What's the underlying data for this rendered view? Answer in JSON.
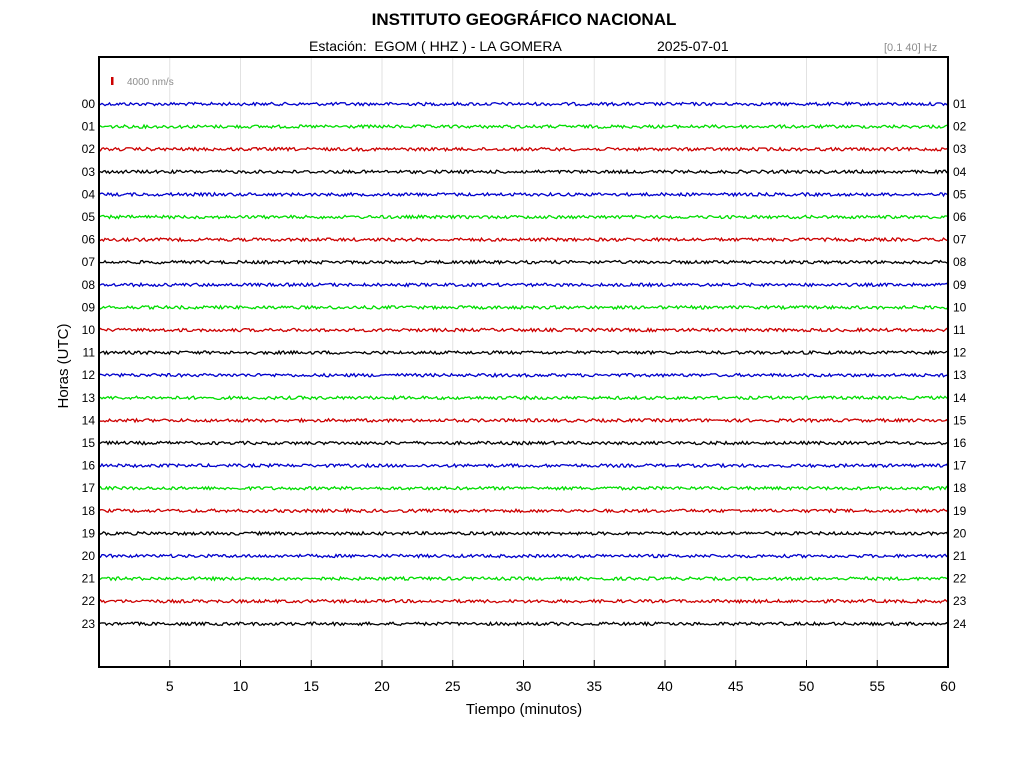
{
  "header": {
    "title": "INSTITUTO GEOGRÁFICO NACIONAL",
    "station_line": "Estación:  EGOM ( HHZ ) - LA GOMERA",
    "date": "2025-07-01",
    "filter": "[0.1 40] Hz"
  },
  "chart_data": {
    "type": "line",
    "title": "INSTITUTO GEOGRÁFICO NACIONAL",
    "xlabel": "Tiempo (minutos)",
    "ylabel": "Horas (UTC)",
    "xlim": [
      0,
      60
    ],
    "x_ticks": [
      5,
      10,
      15,
      20,
      25,
      30,
      35,
      40,
      45,
      50,
      55,
      60
    ],
    "left_hour_labels": [
      "00",
      "01",
      "02",
      "03",
      "04",
      "05",
      "06",
      "07",
      "08",
      "09",
      "10",
      "11",
      "12",
      "13",
      "14",
      "15",
      "16",
      "17",
      "18",
      "19",
      "20",
      "21",
      "22",
      "23"
    ],
    "right_hour_labels": [
      "01",
      "02",
      "03",
      "04",
      "05",
      "06",
      "07",
      "08",
      "09",
      "10",
      "11",
      "12",
      "13",
      "14",
      "15",
      "16",
      "17",
      "18",
      "19",
      "20",
      "21",
      "22",
      "23",
      "24"
    ],
    "trace_colors": [
      "#0000cc",
      "#00dd00",
      "#cc0000",
      "#000000"
    ],
    "scale_bar": {
      "label": "4000 nm/s",
      "color": "#cc0000"
    },
    "grid": true,
    "legend": "none"
  }
}
